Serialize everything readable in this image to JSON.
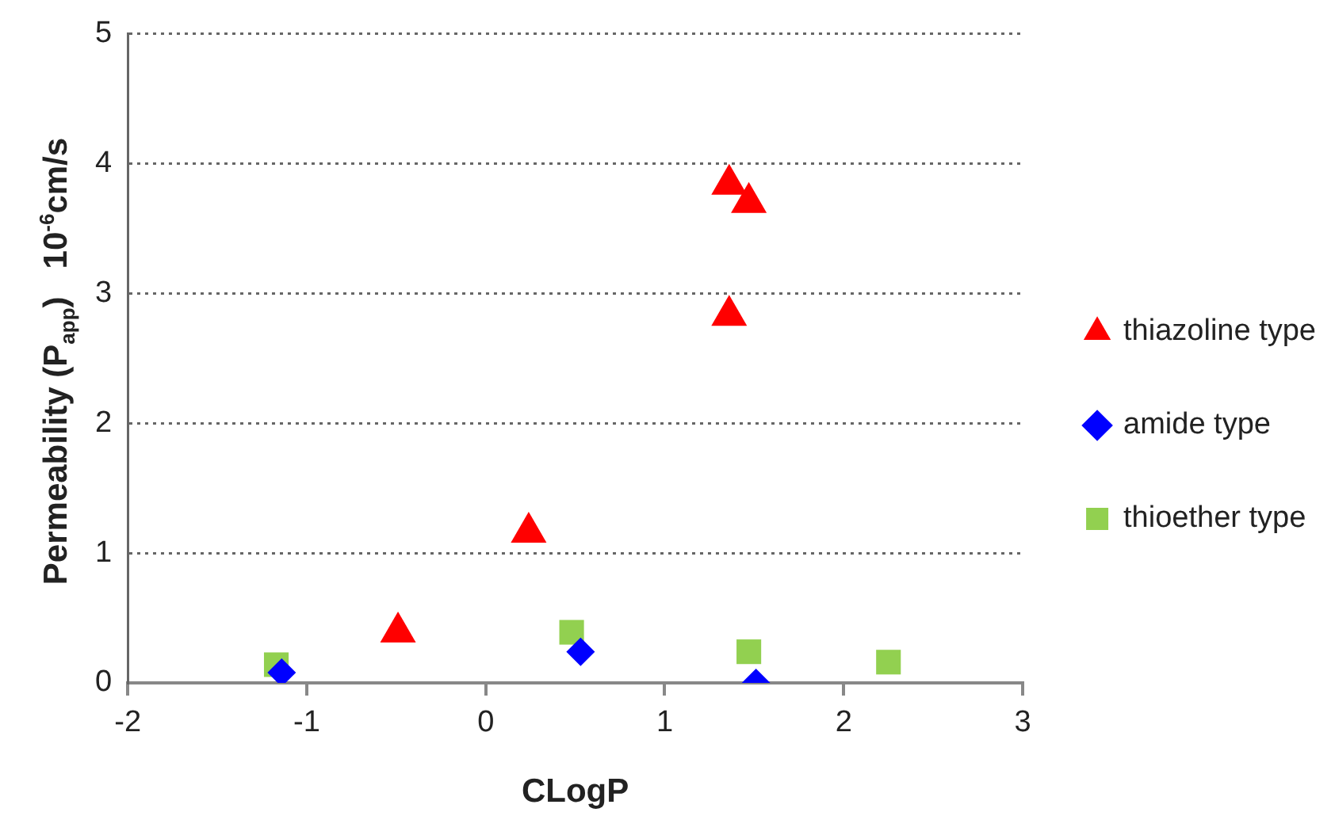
{
  "chart_data": {
    "type": "scatter",
    "xlabel": "CLogP",
    "ylabel": "Permeability (P$_{app}$)   10$^{-6}$cm/s",
    "xlim": [
      -2,
      3
    ],
    "xticks": [
      -2,
      -1,
      0,
      1,
      2,
      3
    ],
    "ylim": [
      0,
      5
    ],
    "yticks": [
      0,
      1,
      2,
      3,
      4,
      5
    ],
    "grid": "y",
    "legend": "right",
    "series": [
      {
        "name": "thiazoline type",
        "color": "#ff0000",
        "marker": "triangle",
        "x": [
          1.36,
          1.47,
          1.36,
          0.24,
          -0.49
        ],
        "values": [
          3.84,
          3.7,
          2.83,
          1.16,
          0.39
        ]
      },
      {
        "name": "amide type",
        "color": "#0000ff",
        "marker": "diamond",
        "x": [
          -1.14,
          0.53,
          1.51
        ],
        "values": [
          0.08,
          0.24,
          0
        ]
      },
      {
        "name": "thioether type",
        "color": "#92d050",
        "marker": "square",
        "x": [
          -1.17,
          0.48,
          1.47,
          2.25
        ],
        "values": [
          0.14,
          0.39,
          0.24,
          0.16
        ]
      }
    ]
  }
}
